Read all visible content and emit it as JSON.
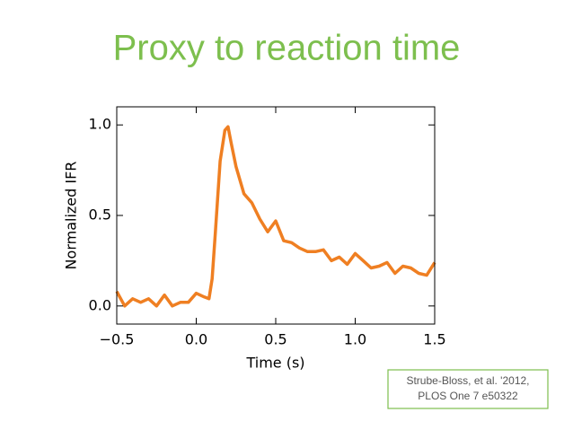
{
  "chart_data": {
    "type": "line",
    "title": "Proxy to reaction time",
    "xlabel": "Time (s)",
    "ylabel": "Normalized IFR",
    "x": [
      -0.5,
      -0.45,
      -0.4,
      -0.35,
      -0.3,
      -0.25,
      -0.2,
      -0.15,
      -0.1,
      -0.05,
      0.0,
      0.05,
      0.08,
      0.1,
      0.12,
      0.15,
      0.18,
      0.2,
      0.22,
      0.25,
      0.3,
      0.35,
      0.4,
      0.45,
      0.5,
      0.55,
      0.6,
      0.65,
      0.7,
      0.75,
      0.8,
      0.85,
      0.9,
      0.95,
      1.0,
      1.05,
      1.1,
      1.15,
      1.2,
      1.25,
      1.3,
      1.35,
      1.4,
      1.45,
      1.5
    ],
    "series": [
      {
        "color": "#ef7f22",
        "values": [
          0.08,
          0.0,
          0.04,
          0.02,
          0.04,
          0.0,
          0.06,
          0.0,
          0.02,
          0.02,
          0.07,
          0.05,
          0.04,
          0.15,
          0.4,
          0.8,
          0.97,
          0.99,
          0.9,
          0.77,
          0.62,
          0.57,
          0.48,
          0.41,
          0.47,
          0.36,
          0.35,
          0.32,
          0.3,
          0.3,
          0.31,
          0.25,
          0.27,
          0.23,
          0.29,
          0.25,
          0.21,
          0.22,
          0.24,
          0.18,
          0.22,
          0.21,
          0.18,
          0.17,
          0.24
        ]
      }
    ],
    "xlim": [
      -0.5,
      1.5
    ],
    "xticks": [
      {
        "value": -0.5,
        "label": "−0.5"
      },
      {
        "value": 0,
        "label": "0.0"
      },
      {
        "value": 0.5,
        "label": "0.5"
      },
      {
        "value": 1,
        "label": "1.0"
      },
      {
        "value": 1.5,
        "label": "1.5"
      }
    ],
    "ylim": [
      -0.1,
      1.1
    ],
    "yticks": [
      {
        "value": 0,
        "label": "0.0"
      },
      {
        "value": 0.5,
        "label": "0.5"
      },
      {
        "value": 1,
        "label": "1.0"
      }
    ],
    "annotation": [
      "Strube-Bloss, et al. '2012,",
      "PLOS One 7 e50322"
    ]
  }
}
